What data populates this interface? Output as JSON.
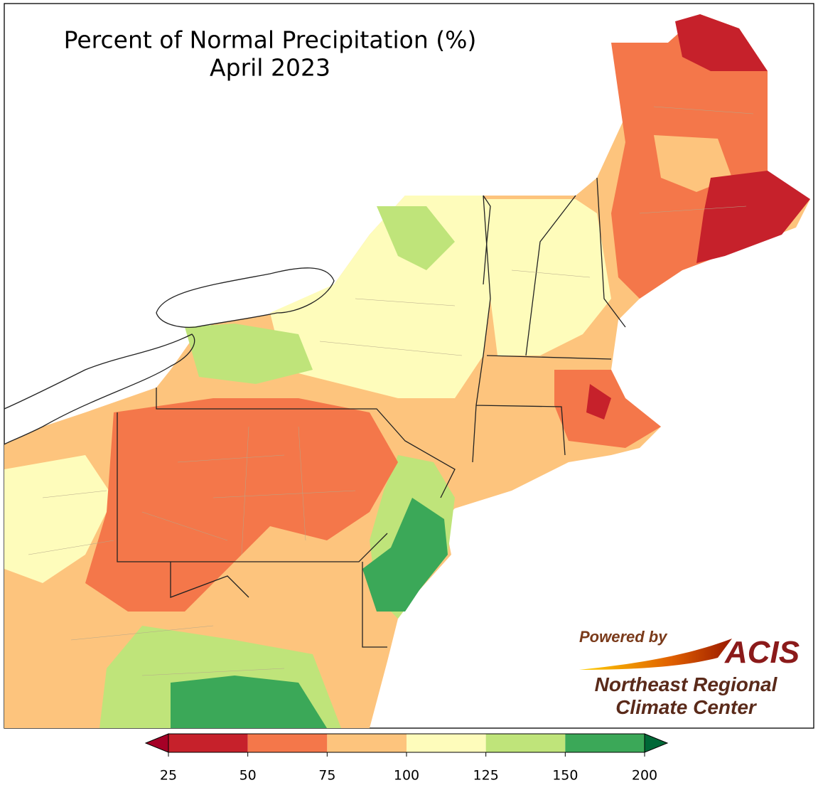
{
  "title": "Percent of Normal Precipitation (%)",
  "subtitle": "April 2023",
  "legend": {
    "ticks": [
      25,
      50,
      75,
      100,
      125,
      150,
      200
    ],
    "colors": [
      "#c6212b",
      "#f4774a",
      "#fdc47d",
      "#fefcbb",
      "#bfe47a",
      "#3ba858"
    ],
    "below_color": "#a50026",
    "above_color": "#006837"
  },
  "logo": {
    "powered_by": "Powered by",
    "brand": "ACIS",
    "org_line1": "Northeast Regional",
    "org_line2": "Climate Center"
  }
}
